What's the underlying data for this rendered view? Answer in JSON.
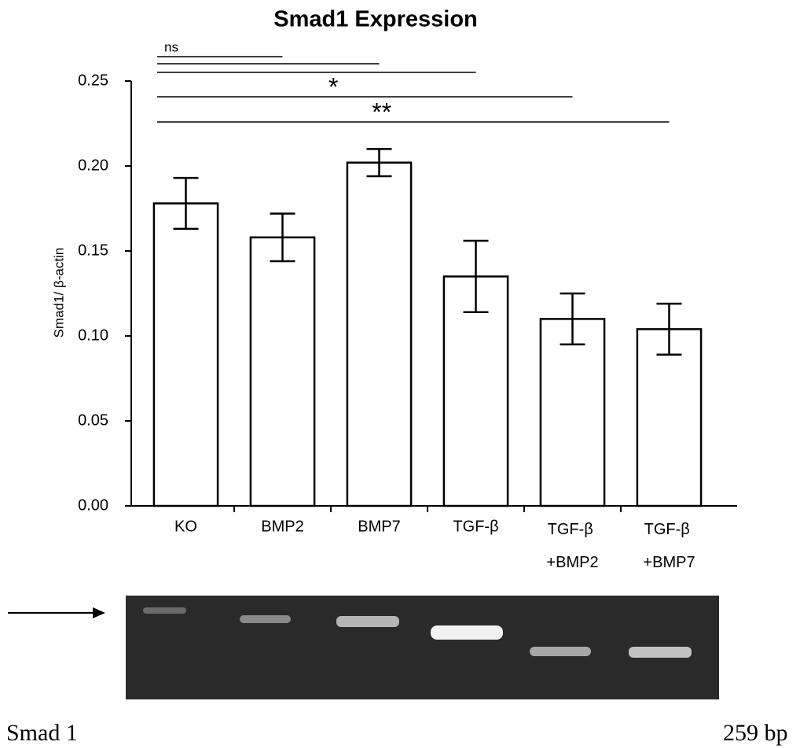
{
  "chart_data": {
    "type": "bar",
    "title": "Smad1 Expression",
    "y_label": "Smad1/ β-actin",
    "categories": [
      "KO",
      "BMP2",
      "BMP7",
      "TGF-β",
      "TGF-β +BMP2",
      "TGF-β +BMP7"
    ],
    "values": [
      0.178,
      0.158,
      0.202,
      0.135,
      0.11,
      0.104
    ],
    "errors": [
      0.015,
      0.014,
      0.008,
      0.021,
      0.015,
      0.015
    ],
    "color": "#ffffff",
    "ylim": [
      0,
      0.25
    ],
    "yticks": [
      {
        "value": 0,
        "label": "0.00"
      },
      {
        "value": 0.05,
        "label": "0.05"
      },
      {
        "value": 0.1,
        "label": "0.10"
      },
      {
        "value": 0.15,
        "label": "0.15"
      },
      {
        "value": 0.2,
        "label": "0.20"
      },
      {
        "value": 0.25,
        "label": "0.25"
      }
    ],
    "grid": false,
    "significance": [
      "ns",
      null,
      null,
      "*",
      "**"
    ]
  },
  "gel": {
    "label": "Smad 1",
    "size": "259 bp"
  }
}
